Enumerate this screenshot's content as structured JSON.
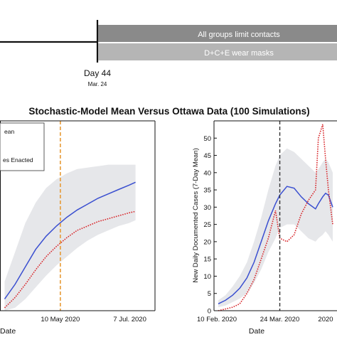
{
  "timeline": {
    "bar_top_label": "All groups limit contacts",
    "bar_bottom_label": "D+C+E wear masks",
    "marker_label": "Day 44",
    "marker_sublabel": "Mar. 24",
    "bar_fill_top": "#8a8a8a",
    "bar_fill_bottom": "#b5b5b5"
  },
  "figure_title": "Stochastic-Model Mean Versus Ottawa Data (100 Simulations)",
  "colors": {
    "model_mean": "#3a4fd0",
    "data": "#d8262a",
    "band": "#e6e7ea",
    "intervention_left": "#e79a35",
    "intervention_right": "#333333"
  },
  "chart_data": [
    {
      "type": "line",
      "panel": "left",
      "title": "",
      "xlabel": "Date",
      "ylabel": "",
      "x_tick_labels": [
        "10 May 2020",
        "7 Jul. 2020"
      ],
      "legend": [
        "ean",
        "es Enacted"
      ],
      "legend_position": "top-left",
      "grid": false,
      "x": [
        "2020-03-28",
        "2020-04-05",
        "2020-04-13",
        "2020-04-21",
        "2020-04-29",
        "2020-05-07",
        "2020-05-15",
        "2020-05-23",
        "2020-05-31",
        "2020-06-08",
        "2020-06-16",
        "2020-06-24",
        "2020-07-02",
        "2020-07-07"
      ],
      "series": [
        {
          "name": "Model mean",
          "values": [
            0.08,
            0.18,
            0.3,
            0.42,
            0.51,
            0.58,
            0.64,
            0.69,
            0.73,
            0.77,
            0.8,
            0.83,
            0.86,
            0.88
          ]
        },
        {
          "name": "Data",
          "values": [
            0.02,
            0.09,
            0.18,
            0.28,
            0.37,
            0.44,
            0.5,
            0.55,
            0.58,
            0.61,
            0.63,
            0.65,
            0.67,
            0.68
          ]
        },
        {
          "name": "Band upper",
          "values": [
            0.2,
            0.4,
            0.6,
            0.74,
            0.84,
            0.9,
            0.94,
            0.97,
            0.98,
            0.99,
            1.0,
            1.0,
            1.0,
            1.0
          ]
        },
        {
          "name": "Band lower",
          "values": [
            0.0,
            0.02,
            0.08,
            0.16,
            0.24,
            0.31,
            0.37,
            0.43,
            0.48,
            0.52,
            0.55,
            0.58,
            0.6,
            0.62
          ]
        }
      ],
      "vline": "2020-05-10"
    },
    {
      "type": "line",
      "panel": "right",
      "title": "",
      "xlabel": "Date",
      "ylabel": "New Daily Documented Cases (7-Day Mean)",
      "ylim": [
        0,
        55
      ],
      "y_ticks": [
        0,
        5,
        10,
        15,
        20,
        25,
        30,
        35,
        40,
        45,
        50
      ],
      "x_tick_labels": [
        "10 Feb. 2020",
        "24 Mar. 2020",
        "2020"
      ],
      "grid": false,
      "x": [
        "2020-02-10",
        "2020-02-15",
        "2020-02-20",
        "2020-02-25",
        "2020-03-01",
        "2020-03-06",
        "2020-03-11",
        "2020-03-16",
        "2020-03-21",
        "2020-03-24",
        "2020-03-29",
        "2020-04-03",
        "2020-04-08",
        "2020-04-13",
        "2020-04-18",
        "2020-04-20",
        "2020-04-23",
        "2020-04-25",
        "2020-04-27",
        "2020-04-30"
      ],
      "series": [
        {
          "name": "Model mean",
          "values": [
            2,
            3,
            4.5,
            6.5,
            9.5,
            14,
            20,
            26,
            31,
            33.5,
            36,
            35.5,
            33,
            31,
            29.5,
            31,
            33,
            34,
            33.5,
            30
          ]
        },
        {
          "name": "Data",
          "values": [
            0,
            0.5,
            1,
            2,
            5,
            9,
            15,
            21,
            29,
            21,
            20,
            22,
            28,
            32,
            35,
            50,
            54,
            44,
            35,
            25
          ]
        },
        {
          "name": "Band upper",
          "values": [
            3,
            4.5,
            7,
            10,
            14,
            20,
            27,
            35,
            42,
            45,
            47,
            46,
            44,
            42,
            40,
            41,
            43,
            44,
            43,
            40
          ]
        },
        {
          "name": "Band lower",
          "values": [
            1,
            1.5,
            2.5,
            3.5,
            5,
            8,
            12,
            17,
            21,
            24,
            25,
            25,
            23,
            21,
            20,
            21,
            22,
            23,
            22,
            20
          ]
        }
      ],
      "vline": "2020-03-24"
    }
  ]
}
